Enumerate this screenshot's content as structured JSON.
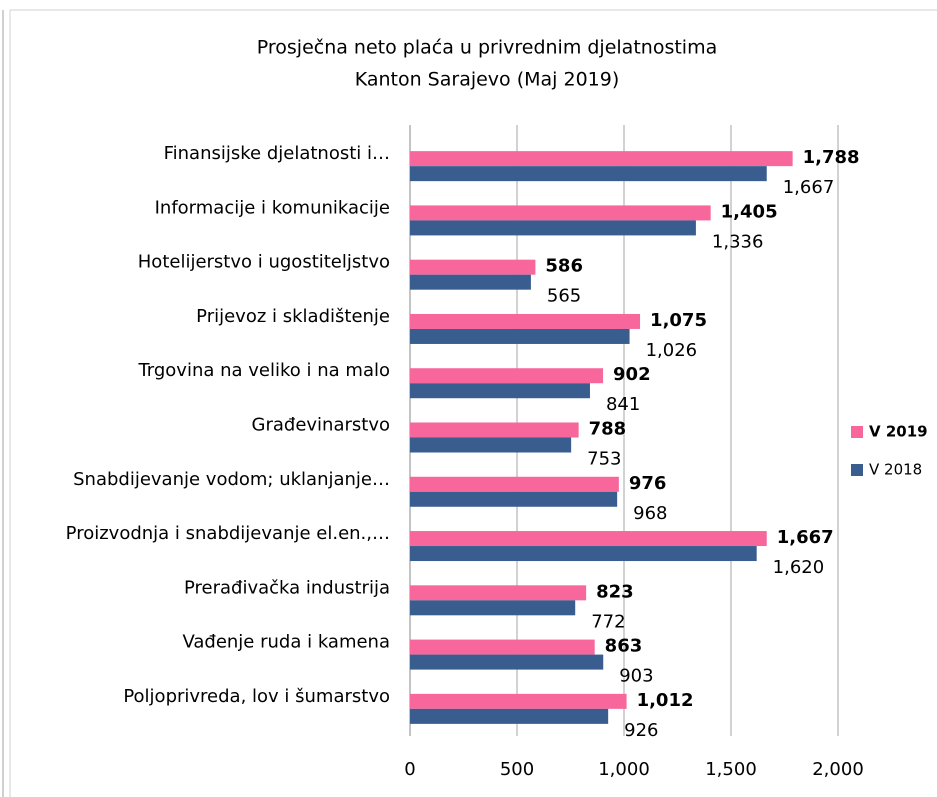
{
  "chart_data": {
    "type": "barh",
    "title": [
      "Prosječna neto plaća u privrednim djelatnostima",
      "Kanton Sarajevo (Maj 2019)"
    ],
    "categories": [
      "Finansijske djelatnosti i…",
      "Informacije i komunikacije",
      "Hotelijerstvo i ugostiteljstvo",
      "Prijevoz i skladištenje",
      "Trgovina na veliko i na malo",
      "Građevinarstvo",
      "Snabdijevanje vodom; uklanjanje…",
      "Proizvodnja i snabdijevanje el.en.,…",
      "Prerađivačka industrija",
      "Vađenje ruda i kamena",
      "Poljoprivreda, lov i šumarstvo"
    ],
    "series": [
      {
        "name": "V 2019",
        "color": "#f7679b",
        "values": [
          1788,
          1405,
          586,
          1075,
          902,
          788,
          976,
          1667,
          823,
          863,
          1012
        ],
        "value_labels": [
          "1,788",
          "1,405",
          "586",
          "1,075",
          "902",
          "788",
          "976",
          "1,667",
          "823",
          "863",
          "1,012"
        ]
      },
      {
        "name": "V 2018",
        "color": "#3a5d8f",
        "values": [
          1667,
          1336,
          565,
          1026,
          841,
          753,
          968,
          1620,
          772,
          903,
          926
        ],
        "value_labels": [
          "1,667",
          "1,336",
          "565",
          "1,026",
          "841",
          "753",
          "968",
          "1,620",
          "772",
          "903",
          "926"
        ]
      }
    ],
    "xlim": [
      0,
      2000
    ],
    "xticks": [
      0,
      500,
      {
        "value": 1000,
        "label": "1,000"
      },
      {
        "value": 1500,
        "label": "1,500"
      },
      {
        "value": 2000,
        "label": "2,000"
      }
    ],
    "grid": true,
    "legend": "right"
  }
}
